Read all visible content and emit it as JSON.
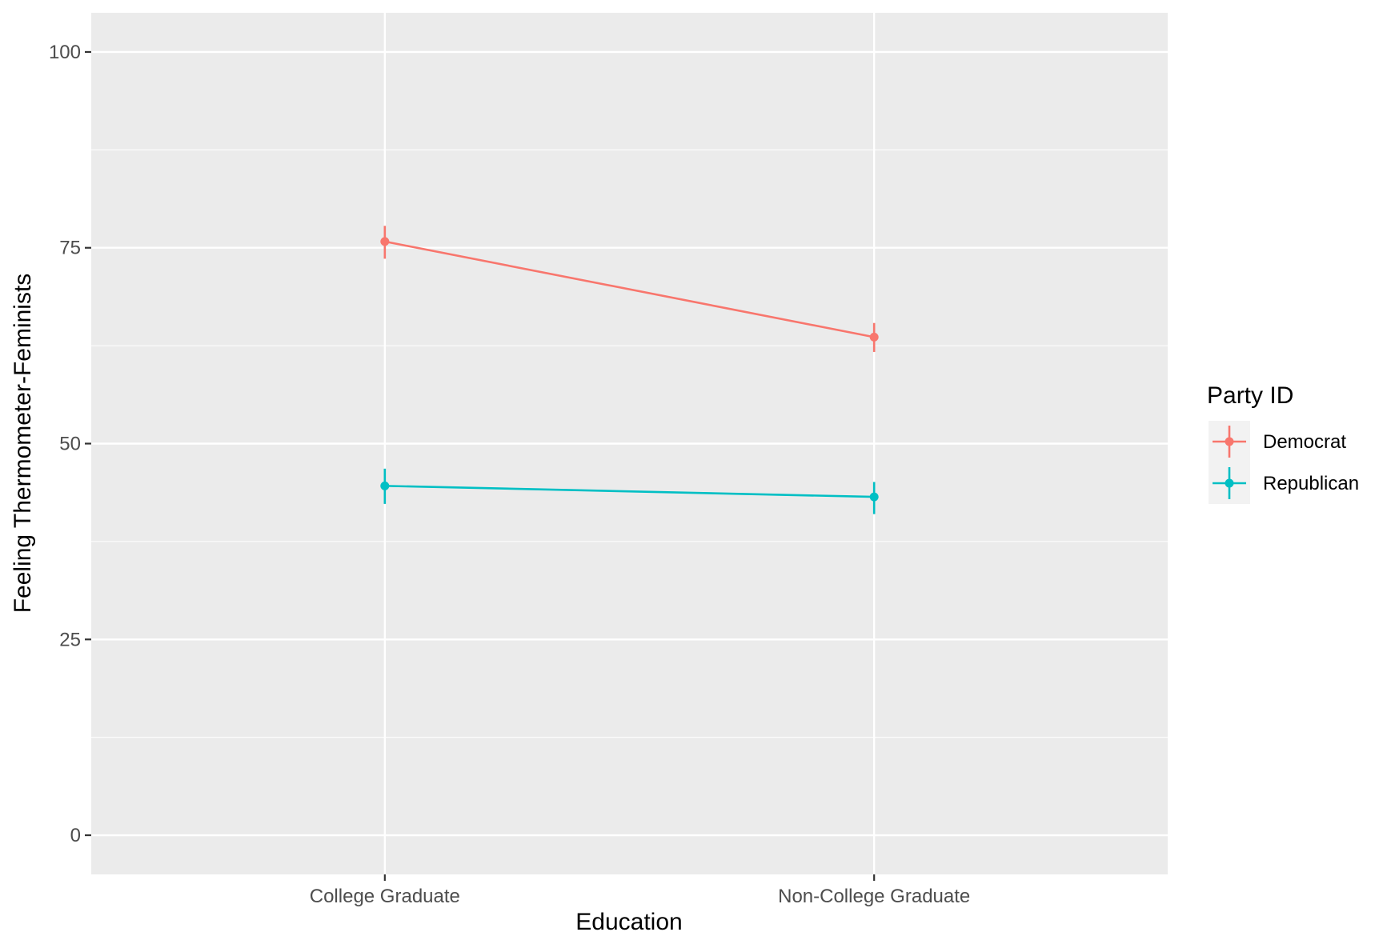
{
  "chart_data": {
    "type": "line",
    "title": "",
    "xlabel": "Education",
    "ylabel": "Feeling Thermometer-Feminists",
    "categories": [
      "College Graduate",
      "Non-College Graduate"
    ],
    "ylim": [
      -5,
      105
    ],
    "yticks": [
      0,
      25,
      50,
      75,
      100
    ],
    "grid": true,
    "legend": {
      "title": "Party ID",
      "position": "right"
    },
    "series": [
      {
        "name": "Democrat",
        "color": "#F8766D",
        "values": [
          75.8,
          63.6
        ],
        "lower": [
          73.6,
          61.7
        ],
        "upper": [
          77.8,
          65.4
        ]
      },
      {
        "name": "Republican",
        "color": "#00BFC4",
        "values": [
          44.6,
          43.2
        ],
        "lower": [
          42.3,
          41.0
        ],
        "upper": [
          46.8,
          45.1
        ]
      }
    ]
  }
}
